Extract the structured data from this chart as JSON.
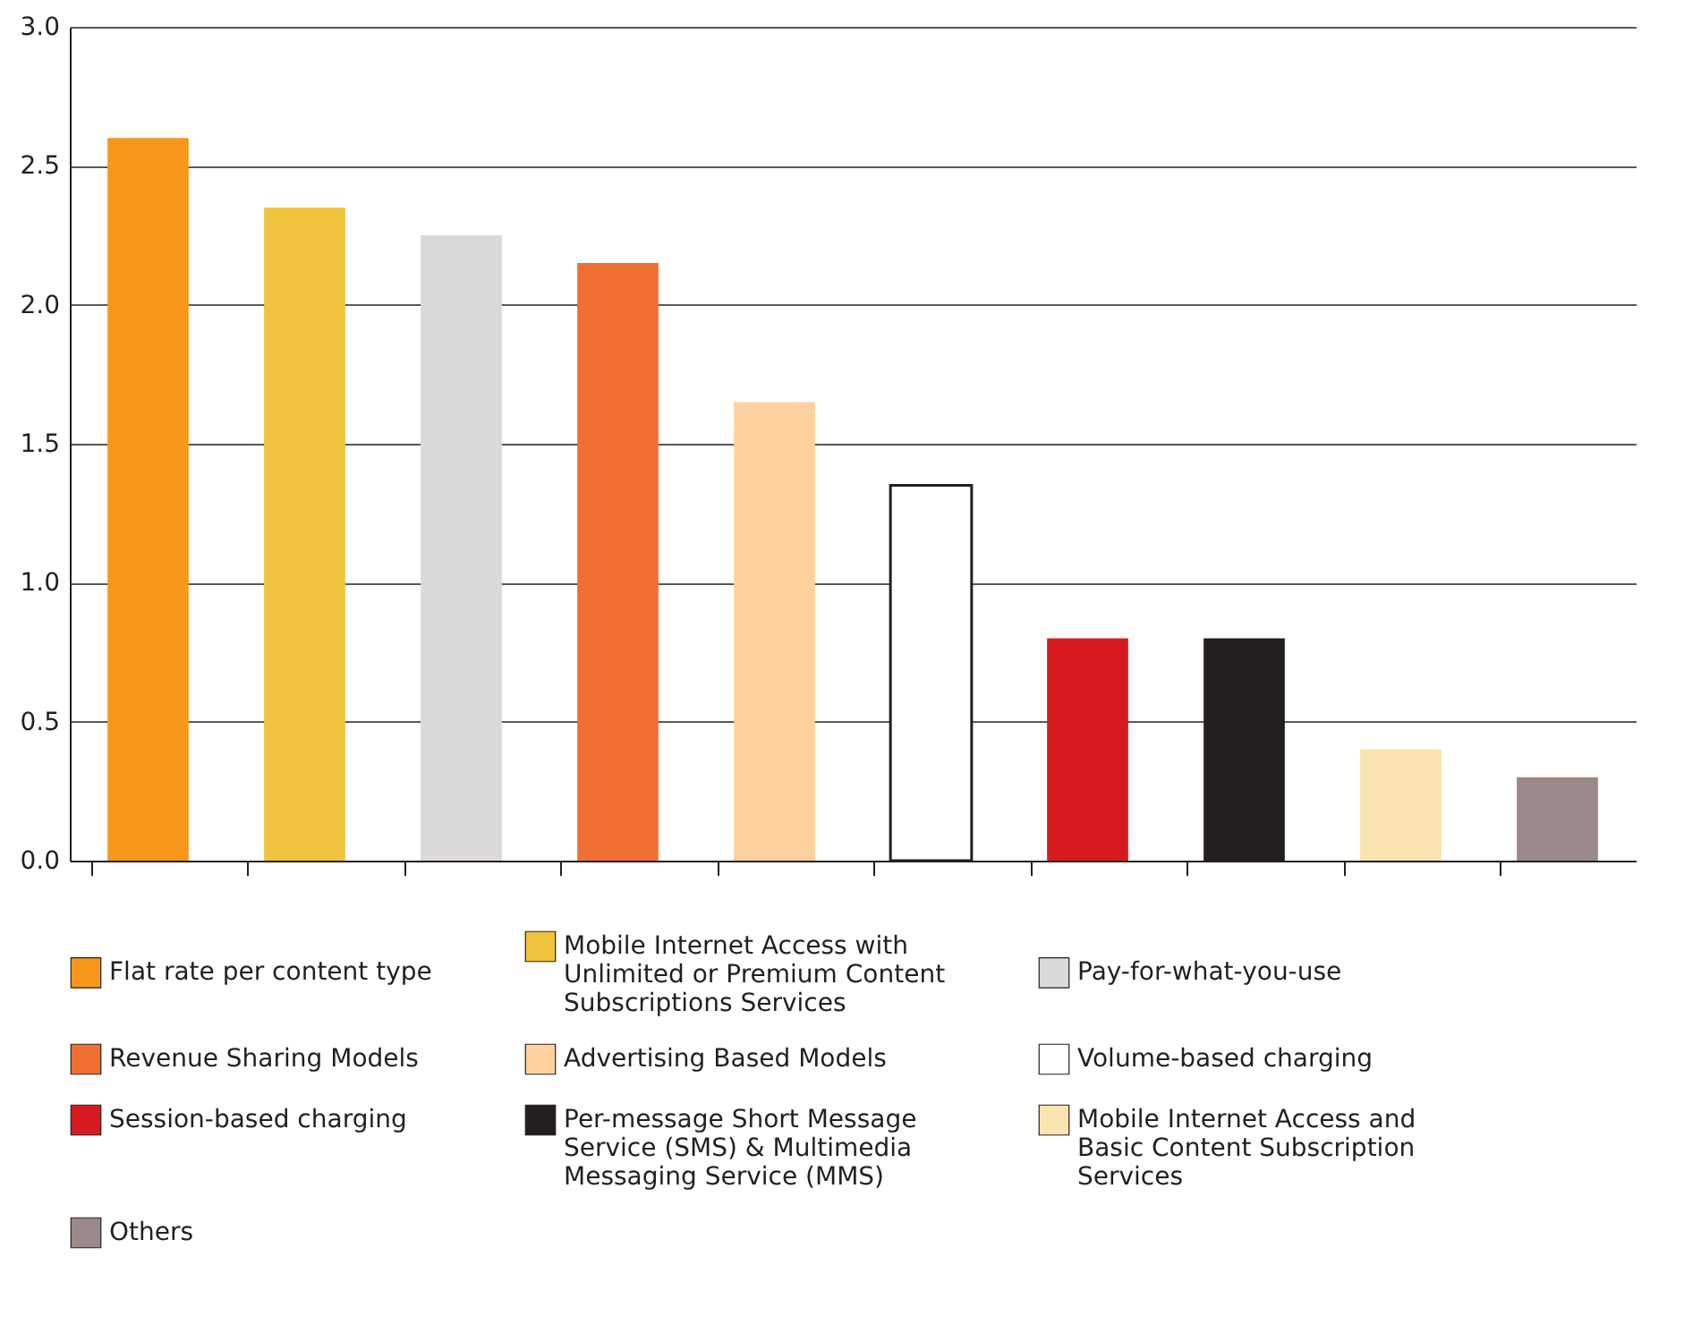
{
  "chart_data": {
    "type": "bar",
    "stacked": true,
    "categories": [
      null,
      null,
      null,
      null,
      null,
      null,
      null,
      null,
      null,
      null
    ],
    "series": [
      {
        "name": "Flat rate per content type",
        "color": "#f7981d",
        "values": [
          2.6,
          null,
          null,
          null,
          null,
          null,
          null,
          null,
          null,
          null
        ]
      },
      {
        "name": "Mobile Internet Access with Unlimited or Premium Content Subscriptions Services",
        "color": "#f0c33c",
        "values": [
          null,
          2.35,
          null,
          null,
          null,
          null,
          null,
          null,
          null,
          null
        ]
      },
      {
        "name": "Pay-for-what-you-use",
        "color": "#dcdad8",
        "values": [
          null,
          null,
          2.25,
          null,
          null,
          null,
          null,
          null,
          null,
          null
        ]
      },
      {
        "name": "Revenue Sharing Models",
        "color": "#f07033",
        "values": [
          null,
          null,
          null,
          2.15,
          null,
          null,
          null,
          null,
          null,
          null
        ]
      },
      {
        "name": "Advertising Based Models",
        "color": "#fed19e",
        "values": [
          null,
          null,
          null,
          null,
          1.65,
          null,
          null,
          null,
          null,
          null
        ]
      },
      {
        "name": "Volume-based charging",
        "color": "#ffffff",
        "values": [
          null,
          null,
          null,
          null,
          null,
          1.35,
          null,
          null,
          null,
          null
        ]
      },
      {
        "name": "Session-based charging",
        "color": "#d71a20",
        "values": [
          null,
          null,
          null,
          null,
          null,
          null,
          0.8,
          null,
          null,
          null
        ]
      },
      {
        "name": "Per-message Short Message Service (SMS) & Multimedia Messaging Service (MMS)",
        "color": "#231f20",
        "values": [
          null,
          null,
          null,
          null,
          null,
          null,
          null,
          0.8,
          null,
          null
        ]
      },
      {
        "name": "Mobile Internet Access and Basic Content Subscription Services",
        "color": "#f9e4b0",
        "values": [
          null,
          null,
          null,
          null,
          null,
          null,
          null,
          null,
          0.4,
          null
        ]
      },
      {
        "name": "Others",
        "color": "#9b8a89",
        "values": [
          null,
          null,
          null,
          null,
          null,
          null,
          null,
          null,
          null,
          0.3
        ]
      }
    ],
    "ylim": [
      0,
      3
    ],
    "yticks": [
      {
        "value": 0,
        "label": "0.0"
      },
      {
        "value": 0.5,
        "label": "0.5"
      },
      {
        "value": 1,
        "label": "1.0"
      },
      {
        "value": 1.5,
        "label": "1.5"
      },
      {
        "value": 2,
        "label": "2.0"
      },
      {
        "value": 2.5,
        "label": "2.5"
      },
      {
        "value": 3,
        "label": "3.0"
      }
    ],
    "grid": "y",
    "legend": "bottom",
    "tick_labels": "y"
  }
}
